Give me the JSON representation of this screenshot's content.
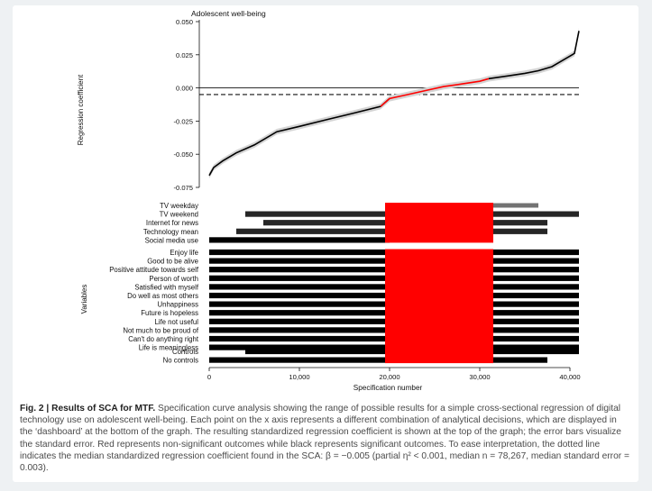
{
  "chart_data": {
    "type": "scatter",
    "title": "Adolescent well-being",
    "top_panel": {
      "ylabel": "Regression coefficient",
      "ylim": [
        -0.075,
        0.05
      ],
      "yticks": [
        "0.050",
        "0.025",
        "0.000",
        "-0.025",
        "-0.050",
        "-0.075"
      ],
      "zero_line": 0.0,
      "median_line": -0.005,
      "curve": {
        "x": [
          1,
          500,
          1500,
          3000,
          5000,
          7500,
          10000,
          13000,
          16000,
          19000,
          20000,
          22000,
          24000,
          26000,
          28000,
          30000,
          31000,
          33000,
          35000,
          36500,
          38000,
          39500,
          40500,
          41000
        ],
        "y": [
          -0.066,
          -0.06,
          -0.055,
          -0.049,
          -0.043,
          -0.033,
          -0.029,
          -0.024,
          -0.019,
          -0.014,
          -0.008,
          -0.005,
          -0.002,
          0.001,
          0.003,
          0.005,
          0.007,
          0.009,
          0.011,
          0.013,
          0.016,
          0.022,
          0.026,
          0.043
        ]
      },
      "nonsignificant_x_range": [
        19500,
        31500
      ]
    },
    "dashboard": {
      "ylabel": "Variables",
      "technology_variables": [
        {
          "label": "TV weekday",
          "extent": [
            21000,
            36500
          ],
          "density": "sparse"
        },
        {
          "label": "TV weekend",
          "extent": [
            4000,
            41000
          ],
          "density": "mixed"
        },
        {
          "label": "Internet for news",
          "extent": [
            6000,
            37500
          ],
          "density": "mixed"
        },
        {
          "label": "Technology mean",
          "extent": [
            3000,
            37500
          ],
          "density": "mixed"
        },
        {
          "label": "Social media use",
          "extent": [
            0,
            20000
          ],
          "density": "dense"
        }
      ],
      "wellbeing_variables": [
        "Enjoy life",
        "Good to be alive",
        "Positive attitude towards self",
        "Person of worth",
        "Satisfied with myself",
        "Do well as most others",
        "Unhappiness",
        "Future is hopeless",
        "Life not useful",
        "Not much to be proud of",
        "Can't do anything right",
        "Life is meaningless"
      ],
      "control_variables": [
        {
          "label": "Controls",
          "extent": [
            4000,
            41000
          ]
        },
        {
          "label": "No controls",
          "extent": [
            0,
            37500
          ]
        }
      ]
    },
    "xlabel": "Specification number",
    "xlim": [
      0,
      41000
    ],
    "xticks": [
      "0",
      "10,000",
      "20,000",
      "30,000",
      "40,000"
    ],
    "colors": {
      "significant": "#000000",
      "nonsignificant": "#ff0000",
      "error_band": "#d4d4d4"
    }
  },
  "caption": {
    "label": "Fig. 2 | Results of SCA for MTF.",
    "text": " Specification curve analysis showing the range of possible results for a simple cross-sectional regression of digital technology use on adolescent well-being. Each point on the x axis represents a different combination of analytical decisions, which are displayed in the ‘dashboard’ at the bottom of the graph. The resulting standardized regression coefficient is shown at the top of the graph; the error bars visualize the standard error. Red represents non-significant outcomes while black represents significant outcomes. To ease interpretation, the dotted line indicates the median standardized regression coefficient found in the SCA: β = −0.005 (partial η² < 0.001, median n = 78,267, median standard error = 0.003)."
  }
}
